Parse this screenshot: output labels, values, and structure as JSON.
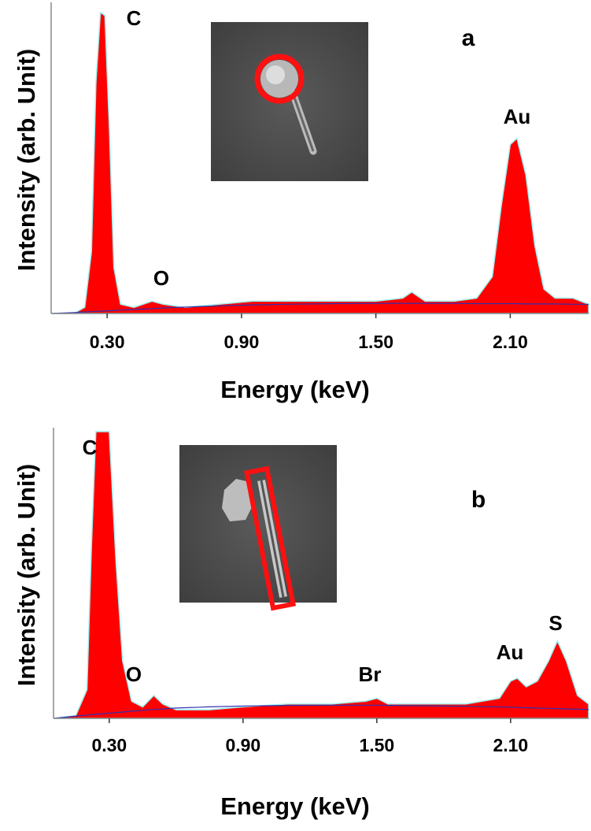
{
  "chart_data": [
    {
      "type": "area",
      "panel": "a",
      "xlabel": "Energy (keV)",
      "ylabel": "Intensity (arb. Unit)",
      "peak_labels": [
        "C",
        "O",
        "Au"
      ],
      "xlim": [
        0.05,
        2.45
      ],
      "ylim": [
        0,
        100
      ],
      "xticks": [
        {
          "value": 0.3,
          "label": "0.30"
        },
        {
          "value": 0.9,
          "label": "0.90"
        },
        {
          "value": 1.5,
          "label": "1.50"
        },
        {
          "value": 2.1,
          "label": "2.10"
        }
      ],
      "x": [
        0.05,
        0.15,
        0.2,
        0.23,
        0.25,
        0.27,
        0.29,
        0.31,
        0.33,
        0.36,
        0.42,
        0.5,
        0.55,
        0.65,
        0.8,
        0.95,
        1.1,
        1.3,
        1.5,
        1.62,
        1.66,
        1.72,
        1.85,
        1.95,
        2.02,
        2.06,
        2.1,
        2.13,
        2.17,
        2.21,
        2.25,
        2.3,
        2.38,
        2.45
      ],
      "series": [
        {
          "kind": "area",
          "color": "#ff0000",
          "outline": "#9ff0f0",
          "values": [
            0,
            0,
            2,
            20,
            75,
            98,
            97,
            60,
            15,
            3,
            2,
            4,
            3,
            2,
            3,
            4,
            4,
            4,
            4,
            5,
            7,
            4,
            4,
            5,
            12,
            35,
            55,
            57,
            45,
            22,
            8,
            5,
            5,
            3
          ]
        },
        {
          "kind": "line",
          "color": "#3030b0",
          "values": [
            0,
            0.3,
            0.5,
            0.6,
            0.7,
            0.8,
            0.8,
            0.9,
            1,
            1.1,
            1.3,
            1.6,
            1.8,
            2.1,
            2.5,
            2.8,
            3,
            3.2,
            3.3,
            3.3,
            3.3,
            3.3,
            3.3,
            3.2,
            3.2,
            3.2,
            3.2,
            3.2,
            3.1,
            3.1,
            3.1,
            3.1,
            3,
            3
          ]
        }
      ]
    },
    {
      "type": "area",
      "panel": "b",
      "xlabel": "Energy (keV)",
      "ylabel": "Intensity (arb. Unit)",
      "peak_labels": [
        "C",
        "O",
        "Br",
        "Au",
        "S"
      ],
      "xlim": [
        0.05,
        2.45
      ],
      "ylim": [
        0,
        100
      ],
      "xticks": [
        {
          "value": 0.3,
          "label": "0.30"
        },
        {
          "value": 0.9,
          "label": "0.90"
        },
        {
          "value": 1.5,
          "label": "1.50"
        },
        {
          "value": 2.1,
          "label": "2.10"
        }
      ],
      "x": [
        0.05,
        0.15,
        0.2,
        0.22,
        0.24,
        0.3,
        0.33,
        0.36,
        0.4,
        0.45,
        0.5,
        0.54,
        0.6,
        0.75,
        0.9,
        1.1,
        1.3,
        1.45,
        1.5,
        1.55,
        1.7,
        1.9,
        2.05,
        2.1,
        2.13,
        2.17,
        2.22,
        2.27,
        2.31,
        2.35,
        2.4,
        2.45
      ],
      "series": [
        {
          "kind": "area",
          "color": "#ff0000",
          "outline": "#9ff0f0",
          "values": [
            0,
            1,
            10,
            60,
            100,
            100,
            55,
            20,
            6,
            4,
            8,
            5,
            3,
            3,
            4,
            5,
            5,
            6,
            7,
            5,
            5,
            5,
            7,
            13,
            14,
            11,
            13,
            20,
            27,
            20,
            8,
            5
          ]
        },
        {
          "kind": "line",
          "color": "#3030b0",
          "values": [
            0,
            0.8,
            1.1,
            1.3,
            1.4,
            1.8,
            2,
            2.2,
            2.5,
            2.8,
            3.1,
            3.3,
            3.6,
            4,
            4.3,
            4.5,
            4.6,
            4.6,
            4.6,
            4.5,
            4.4,
            4.2,
            4,
            3.9,
            3.8,
            3.7,
            3.6,
            3.5,
            3.4,
            3.3,
            3.2,
            3.1
          ]
        }
      ]
    }
  ]
}
